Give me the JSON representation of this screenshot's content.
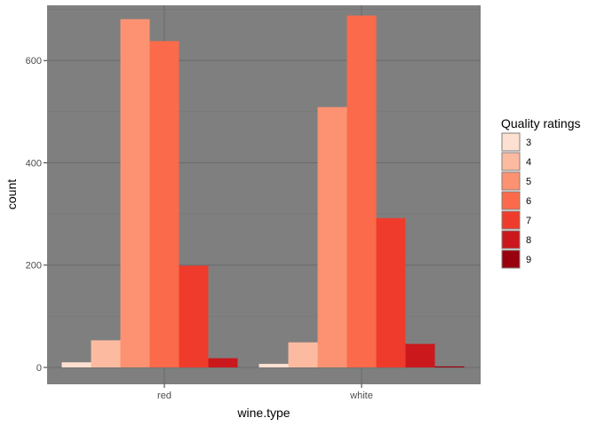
{
  "chart_data": {
    "type": "bar",
    "xlabel": "wine.type",
    "ylabel": "count",
    "categories": [
      "red",
      "white"
    ],
    "ylim": [
      0,
      700
    ],
    "y_ticks": [
      0,
      200,
      400,
      600
    ],
    "grid": true,
    "legend": {
      "title": "Quality ratings",
      "position": "right"
    },
    "series": [
      {
        "name": "3",
        "color": "#fee0d2",
        "values": [
          10,
          7
        ]
      },
      {
        "name": "4",
        "color": "#fcbba1",
        "values": [
          53,
          49
        ]
      },
      {
        "name": "5",
        "color": "#fc9272",
        "values": [
          681,
          509
        ]
      },
      {
        "name": "6",
        "color": "#fb6a4a",
        "values": [
          638,
          688
        ]
      },
      {
        "name": "7",
        "color": "#ef3b2c",
        "values": [
          199,
          292
        ]
      },
      {
        "name": "8",
        "color": "#cb181d",
        "values": [
          18,
          46
        ]
      },
      {
        "name": "9",
        "color": "#99000d",
        "values": [
          0,
          2
        ]
      }
    ]
  },
  "colors": {
    "panel": "#7f7f7f",
    "grid_major": "#6b6b6b",
    "grid_minor": "#747474"
  }
}
